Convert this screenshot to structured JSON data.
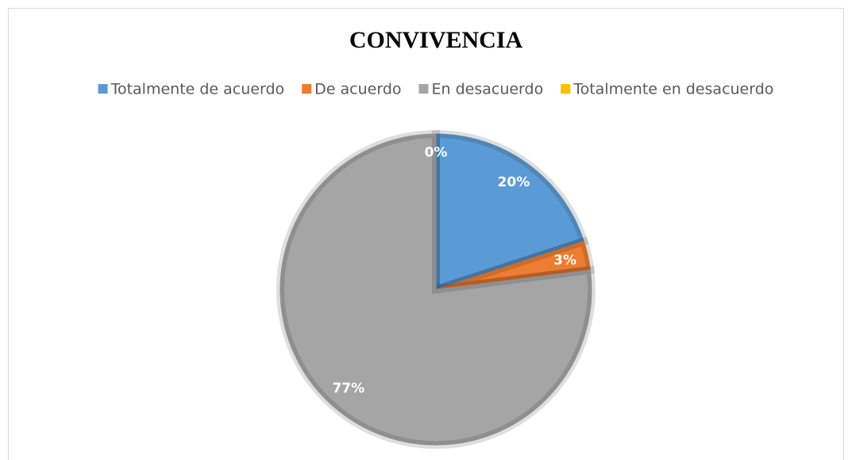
{
  "chart_data": {
    "type": "pie",
    "title": "CONVIVENCIA",
    "categories": [
      "Totalmente de acuerdo",
      "De acuerdo",
      "En desacuerdo",
      "Totalmente en desacuerdo"
    ],
    "values": [
      20,
      3,
      77,
      0
    ],
    "value_labels": [
      "20%",
      "3%",
      "77%",
      "0%"
    ],
    "colors": [
      "#5b9bd5",
      "#ed7d31",
      "#a5a5a5",
      "#ffc000"
    ],
    "legend": "top"
  }
}
